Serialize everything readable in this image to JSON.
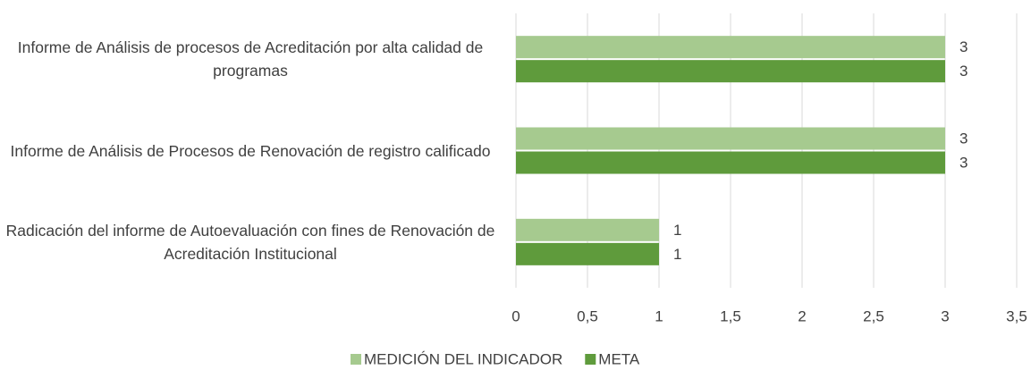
{
  "chart_data": {
    "type": "hbar",
    "categories": [
      "Informe de Análisis de procesos de Acreditación por alta calidad de programas",
      "Informe de Análisis de Procesos de Renovación de registro calificado",
      "Radicación del informe de Autoevaluación con fines de Renovación de Acreditación Institucional"
    ],
    "series": [
      {
        "name": "MEDICIÓN DEL INDICADOR",
        "color": "#a6ca8f",
        "values": [
          3,
          3,
          1
        ]
      },
      {
        "name": "META",
        "color": "#5f9b3c",
        "values": [
          3,
          3,
          1
        ]
      }
    ],
    "xlim": [
      0,
      3.5
    ],
    "xticks": [
      0,
      {
        "value": 0.5,
        "label": "0,5"
      },
      1,
      {
        "value": 1.5,
        "label": "1,5"
      },
      2,
      {
        "value": 2.5,
        "label": "2,5"
      },
      3,
      {
        "value": 3.5,
        "label": "3,5"
      }
    ],
    "grid": true,
    "legend": "bottom"
  }
}
